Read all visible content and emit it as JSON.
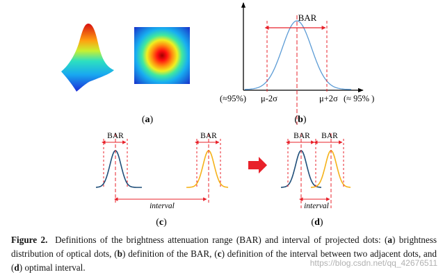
{
  "panels": {
    "a": {
      "label": "a"
    },
    "b": {
      "label": "b",
      "bar_label": "BAR",
      "left_annotation": "(≈95%)",
      "left_tick": "μ-2σ",
      "right_tick": "μ+2σ",
      "right_annotation": "(≈ 95% )"
    },
    "c": {
      "label": "c",
      "bar_label": "BAR",
      "interval_label": "interval"
    },
    "d": {
      "label": "d",
      "bar_label": "BAR",
      "interval_label": "interval"
    }
  },
  "caption": {
    "lead": "Figure 2.",
    "text": "Definitions of the brightness attenuation range (BAR) and interval of projected dots: (a) brightness distribution of optical dots, (b) definition of the BAR, (c) definition of the interval between two adjacent dots, and (d) optimal interval."
  },
  "watermark": "https://blog.csdn.net/qq_42676511",
  "colors": {
    "annotation_red": "#e8212a",
    "curve_blue_b": "#5b9bd5",
    "curve_dark_blue": "#1f4e79",
    "curve_orange": "#f5b21a",
    "arrow_red": "#e8212a"
  },
  "icons": [
    "red-right-arrow-icon"
  ]
}
